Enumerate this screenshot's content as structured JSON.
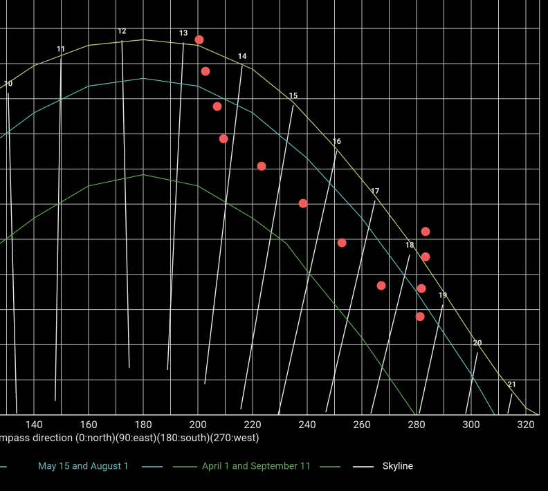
{
  "chart_data": {
    "type": "line",
    "x_label": "mpass direction (0:north)(90:east)(180:south)(270:west)",
    "xlim": [
      127.6,
      325
    ],
    "ylim": [
      0,
      59.05
    ],
    "xticks": [
      140,
      160,
      180,
      200,
      220,
      240,
      260,
      280,
      300,
      320
    ],
    "xgrid": [
      130,
      140,
      150,
      160,
      170,
      180,
      190,
      200,
      210,
      220,
      230,
      240,
      250,
      260,
      270,
      280,
      290,
      300,
      310,
      320
    ],
    "ygrid": [
      0,
      5,
      10,
      15,
      20,
      25,
      30,
      35,
      40,
      45,
      50,
      55
    ],
    "grid_color": "#bdbdbd",
    "series": [
      {
        "name": null,
        "color": "#c9c97a",
        "x": [
          127.6,
          140,
          160,
          180,
          200,
          220,
          234.9,
          250.6,
          264.8,
          279.5,
          289.6,
          299.7,
          309.9,
          320,
          324.6
        ],
        "values": [
          46.5,
          49.7,
          52.6,
          53.4,
          52.6,
          49.2,
          44.5,
          37.9,
          31.2,
          23.6,
          17.7,
          11.6,
          5.9,
          1.0,
          0
        ]
      },
      {
        "name": "May 15 and August 1",
        "color": "#62b9b9",
        "x": [
          127.6,
          140,
          160,
          180,
          200,
          220,
          240,
          260,
          280,
          300,
          308.6
        ],
        "values": [
          39.4,
          43.0,
          46.8,
          47.9,
          46.8,
          43.0,
          36.5,
          28.0,
          17.5,
          5.8,
          0
        ]
      },
      {
        "name": "April 1 and September 11",
        "color": "#5fa553",
        "x": [
          127.6,
          140,
          160,
          180,
          200,
          220,
          232.4,
          240,
          260,
          279.5
        ],
        "values": [
          24.4,
          28.0,
          32.6,
          34.2,
          32.6,
          28.0,
          24.4,
          20.5,
          11.0,
          0
        ]
      },
      {
        "name": "Skyline",
        "color": "#ffffff",
        "x": [
          127.6,
          325
        ],
        "values": [
          0,
          0
        ]
      }
    ],
    "hour_lines": [
      {
        "hour": 10,
        "x": [
          130.6,
          133.7
        ],
        "values": [
          45.8,
          0.2
        ]
      },
      {
        "hour": 11,
        "x": [
          149.9,
          147.8
        ],
        "values": [
          50.7,
          2.0
        ]
      },
      {
        "hour": 12,
        "x": [
          172.2,
          174.9
        ],
        "values": [
          53.3,
          6.7
        ]
      },
      {
        "hour": 13,
        "x": [
          194.7,
          188.9
        ],
        "values": [
          53.0,
          6.4
        ]
      },
      {
        "hour": 14,
        "x": [
          216.2,
          202.5
        ],
        "values": [
          49.7,
          4.4
        ]
      },
      {
        "hour": 15,
        "x": [
          234.9,
          215.7
        ],
        "values": [
          44.1,
          0.8
        ]
      },
      {
        "hour": 16,
        "x": [
          250.8,
          229.4
        ],
        "values": [
          37.6,
          0
        ]
      },
      {
        "hour": 17,
        "x": [
          264.8,
          246.8
        ],
        "values": [
          30.5,
          0.4
        ]
      },
      {
        "hour": 18,
        "x": [
          277.5,
          263.3
        ],
        "values": [
          22.8,
          0.2
        ]
      },
      {
        "hour": 19,
        "x": [
          289.6,
          281.0
        ],
        "values": [
          15.7,
          0.2
        ]
      },
      {
        "hour": 20,
        "x": [
          302.3,
          298.0
        ],
        "values": [
          8.9,
          0.2
        ]
      },
      {
        "hour": 21,
        "x": [
          314.9,
          313.4
        ],
        "values": [
          3.0,
          0.2
        ]
      }
    ],
    "hour_line_color": "#e6e6e6",
    "points": {
      "color": "#f45b5b",
      "x": [
        200.5,
        202.8,
        207.1,
        209.4,
        223.3,
        238.5,
        252.7,
        283.3,
        283.3,
        267.1,
        281.8,
        281.3
      ],
      "values": [
        53.4,
        48.9,
        43.9,
        39.3,
        35.4,
        30.1,
        24.5,
        26.1,
        22.5,
        18.4,
        18.0,
        14.0
      ]
    }
  }
}
